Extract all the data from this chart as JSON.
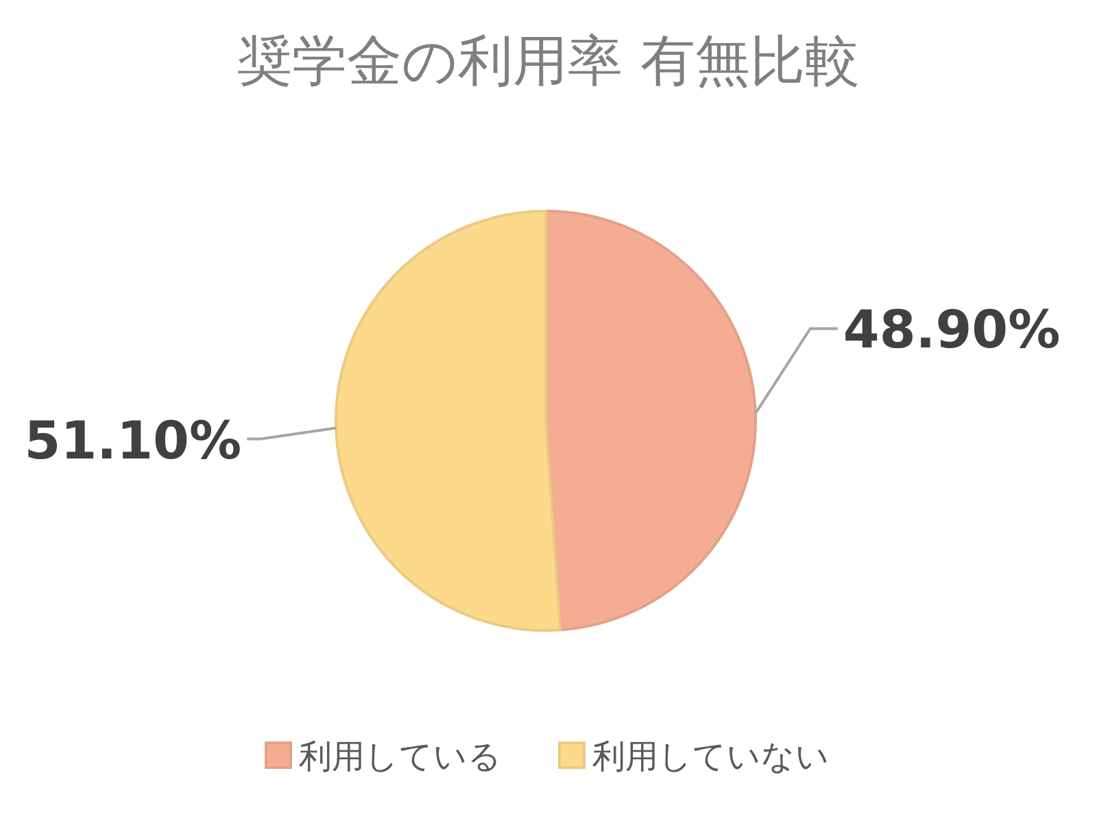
{
  "chart_data": {
    "type": "pie",
    "title": "奨学金の利用率 有無比較",
    "categories": [
      "利用している",
      "利用していない"
    ],
    "values": [
      48.9,
      51.1
    ],
    "colors": [
      "#f4ad92",
      "#fdd98c"
    ],
    "value_labels": [
      "48.90%",
      "51.10%"
    ],
    "legend": "bottom"
  }
}
